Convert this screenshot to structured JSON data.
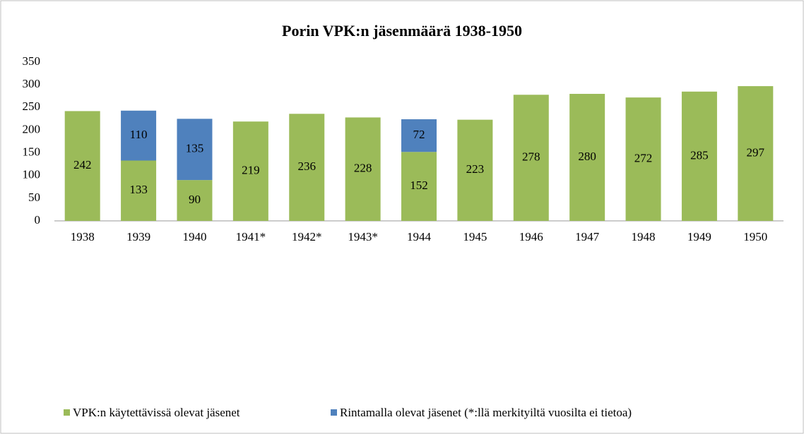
{
  "chart_data": {
    "type": "stacked_bar",
    "title": "Porin VPK:n jäsenmäärä 1938-1950",
    "categories": [
      "1938",
      "1939",
      "1940",
      "1941*",
      "1942*",
      "1943*",
      "1944",
      "1945",
      "1946",
      "1947",
      "1948",
      "1949",
      "1950"
    ],
    "series": [
      {
        "name": "VPK:n käytettävissä olevat jäsenet",
        "color": "#9bbb59",
        "values": [
          242,
          133,
          90,
          219,
          236,
          228,
          152,
          223,
          278,
          280,
          272,
          285,
          297
        ]
      },
      {
        "name": "Rintamalla olevat jäsenet (*:llä merkityiltä vuosilta ei tietoa)",
        "color": "#4f81bd",
        "values": [
          null,
          110,
          135,
          null,
          null,
          null,
          72,
          null,
          null,
          null,
          null,
          null,
          null
        ]
      }
    ],
    "ylim": [
      0,
      350
    ],
    "yticks": [
      0,
      50,
      100,
      150,
      200,
      250,
      300,
      350
    ],
    "grid": false,
    "legend": "bottom"
  }
}
